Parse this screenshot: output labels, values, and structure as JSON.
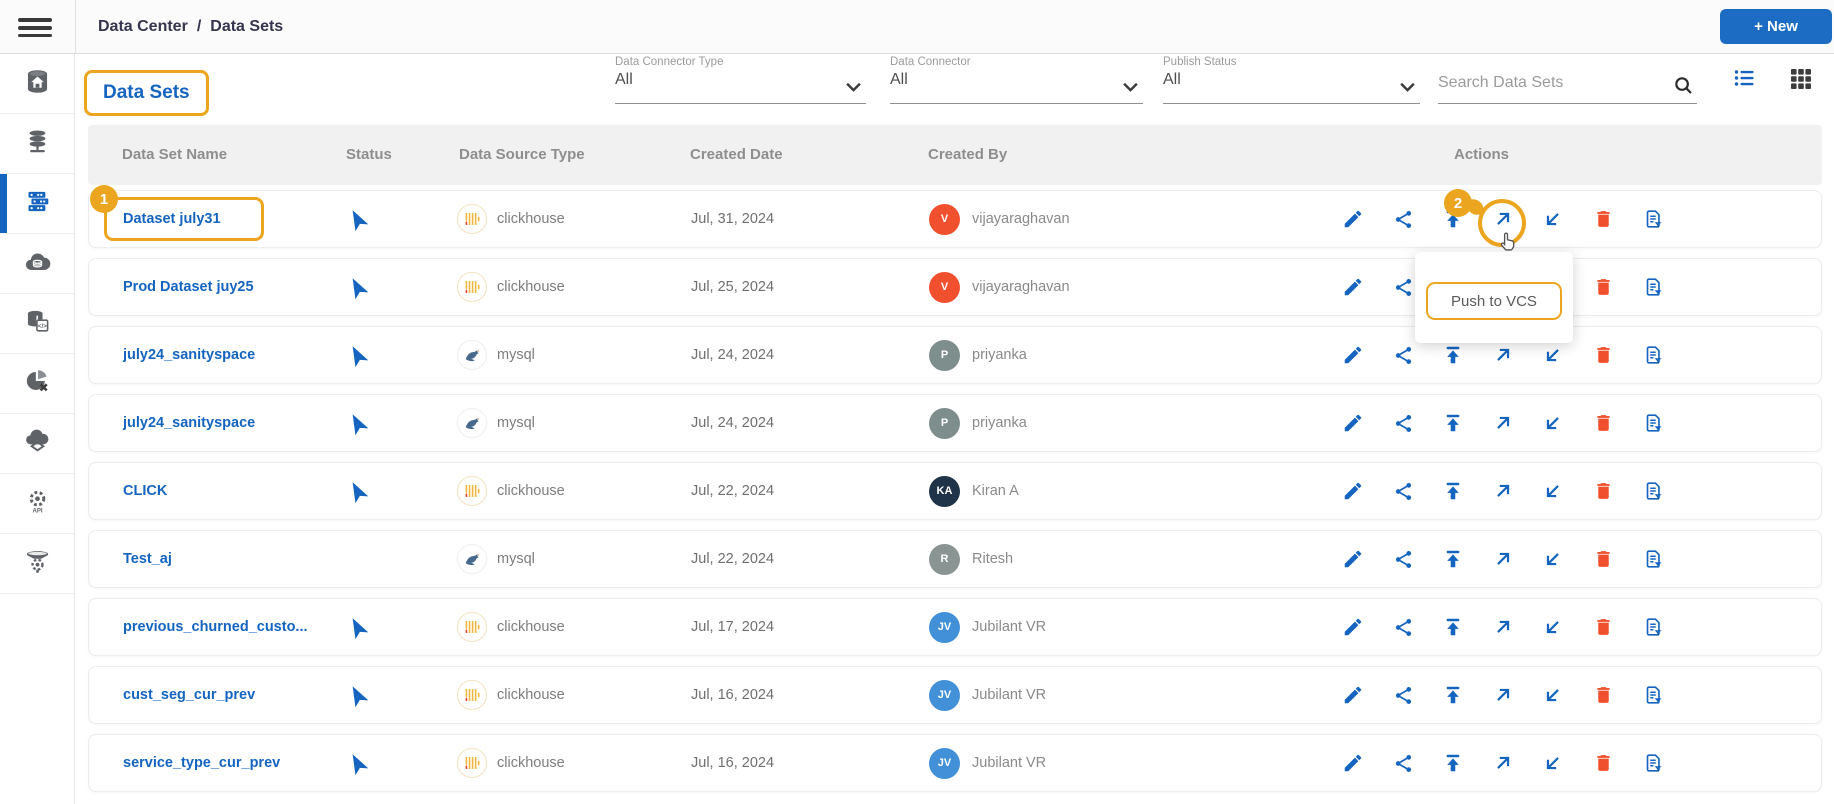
{
  "topbar": {
    "breadcrumb": [
      "Data Center",
      "Data Sets"
    ],
    "breadcrumb_separator": "/",
    "new_button_label": "+ New"
  },
  "page_title": "Data Sets",
  "filters": [
    {
      "label": "Data Connector Type",
      "value": "All"
    },
    {
      "label": "Data Connector",
      "value": "All"
    },
    {
      "label": "Publish Status",
      "value": "All"
    }
  ],
  "search": {
    "placeholder": "Search Data Sets"
  },
  "view_icons": [
    "list-view-icon",
    "grid-view-icon"
  ],
  "sidebar_icons": [
    "data-center-home-icon",
    "data-connectors-icon",
    "data-sets-icon",
    "cloud-data-icon",
    "data-store-code-icon",
    "data-sync-icon",
    "data-lake-icon",
    "api-services-icon",
    "data-pipeline-icon"
  ],
  "table": {
    "columns": [
      "Data Set Name",
      "Status",
      "Data Source Type",
      "Created Date",
      "Created By",
      "Actions"
    ],
    "rows": [
      {
        "name": "Dataset july31",
        "published": true,
        "source": "clickhouse",
        "date": "Jul, 31, 2024",
        "creator": "vijayaraghavan",
        "initials": "V",
        "avatar_color": "#F1502F"
      },
      {
        "name": "Prod Dataset juy25",
        "published": true,
        "source": "clickhouse",
        "date": "Jul, 25, 2024",
        "creator": "vijayaraghavan",
        "initials": "V",
        "avatar_color": "#F1502F"
      },
      {
        "name": "july24_sanityspace",
        "published": true,
        "source": "mysql",
        "date": "Jul, 24, 2024",
        "creator": "priyanka",
        "initials": "P",
        "avatar_color": "#7E8E8C"
      },
      {
        "name": "july24_sanityspace",
        "published": true,
        "source": "mysql",
        "date": "Jul, 24, 2024",
        "creator": "priyanka",
        "initials": "P",
        "avatar_color": "#7E8E8C"
      },
      {
        "name": "CLICK",
        "published": true,
        "source": "clickhouse",
        "date": "Jul, 22, 2024",
        "creator": "Kiran A",
        "initials": "KA",
        "avatar_color": "#1F3448"
      },
      {
        "name": "Test_aj",
        "published": false,
        "source": "mysql",
        "date": "Jul, 22, 2024",
        "creator": "Ritesh",
        "initials": "R",
        "avatar_color": "#8A9492"
      },
      {
        "name": "previous_churned_custo...",
        "published": true,
        "source": "clickhouse",
        "date": "Jul, 17, 2024",
        "creator": "Jubilant VR",
        "initials": "JV",
        "avatar_color": "#4190D8"
      },
      {
        "name": "cust_seg_cur_prev",
        "published": true,
        "source": "clickhouse",
        "date": "Jul, 16, 2024",
        "creator": "Jubilant VR",
        "initials": "JV",
        "avatar_color": "#4190D8"
      },
      {
        "name": "service_type_cur_prev",
        "published": true,
        "source": "clickhouse",
        "date": "Jul, 16, 2024",
        "creator": "Jubilant VR",
        "initials": "JV",
        "avatar_color": "#4190D8"
      }
    ]
  },
  "row_actions": [
    "edit",
    "share",
    "publish",
    "push-to-vcs",
    "pull-from-vcs",
    "delete",
    "copy-filter"
  ],
  "tooltip": {
    "label": "Push to VCS"
  },
  "annotations": {
    "step1": "1",
    "step2": "2"
  },
  "colors": {
    "accent_blue": "#1565C0",
    "annotation_orange": "#ECA51E",
    "delete_red": "#F1502F",
    "new_button_blue": "#1B6CC2"
  }
}
